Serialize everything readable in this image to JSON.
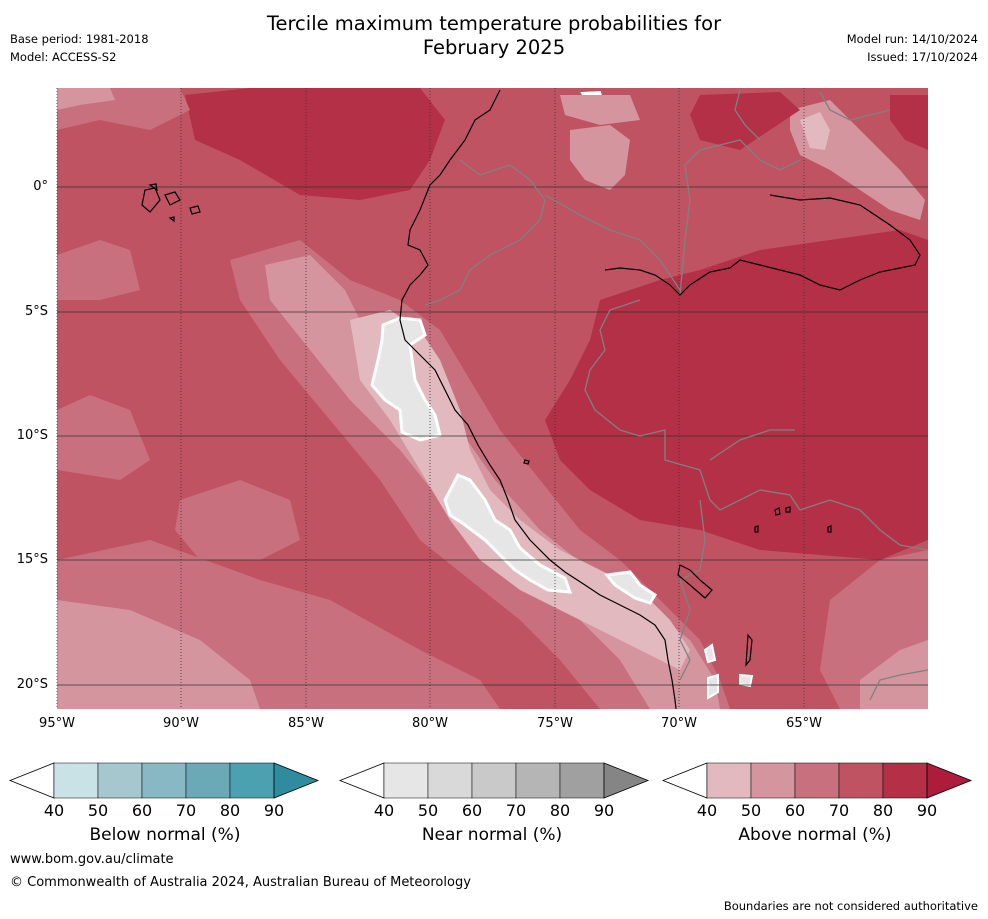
{
  "title_line1": "Tercile maximum temperature probabilities for",
  "title_line2": "February 2025",
  "meta": {
    "base_period": "Base period: 1981-2018",
    "model": "Model: ACCESS-S2",
    "model_run": "Model run: 14/10/2024",
    "issued": "Issued: 17/10/2024"
  },
  "axes": {
    "latitude_labels": [
      "0°",
      "5°S",
      "10°S",
      "15°S",
      "20°S"
    ],
    "longitude_labels": [
      "95°W",
      "90°W",
      "85°W",
      "80°W",
      "75°W",
      "70°W",
      "65°W"
    ]
  },
  "colorbars": [
    {
      "name": "below",
      "title": "Below normal (%)",
      "ticks": [
        "40",
        "50",
        "60",
        "70",
        "80",
        "90"
      ],
      "colors": [
        "#ffffff",
        "#c8e2e6",
        "#a6c7cd",
        "#87b8c3",
        "#6ba9b6",
        "#4ba1b0",
        "#2e8c9e"
      ]
    },
    {
      "name": "near",
      "title": "Near normal (%)",
      "ticks": [
        "40",
        "50",
        "60",
        "70",
        "80",
        "90"
      ],
      "colors": [
        "#ffffff",
        "#e6e6e6",
        "#d9d9d9",
        "#c9c9c9",
        "#b5b5b5",
        "#a0a0a0",
        "#858585"
      ]
    },
    {
      "name": "above",
      "title": "Above normal (%)",
      "ticks": [
        "40",
        "50",
        "60",
        "70",
        "80",
        "90"
      ],
      "colors": [
        "#ffffff",
        "#e2b9bf",
        "#d4959f",
        "#c9707f",
        "#c05362",
        "#b43046",
        "#ad1c3a"
      ]
    }
  ],
  "footer": {
    "website": "www.bom.gov.au/climate",
    "copyright": "© Commonwealth of Australia 2024, Australian Bureau of Meteorology",
    "disclaimer": "Boundaries are not considered authoritative"
  },
  "map_colors": {
    "above_50_60": "#d4959f",
    "above_60_70": "#c9707f",
    "above_70_80": "#c05362",
    "above_80_90": "#b43046",
    "above_90": "#ad1c3a",
    "near_40_50": "#e6e6e6",
    "coastline": "#000000",
    "borders": "#808080",
    "gridline": "#333333"
  }
}
